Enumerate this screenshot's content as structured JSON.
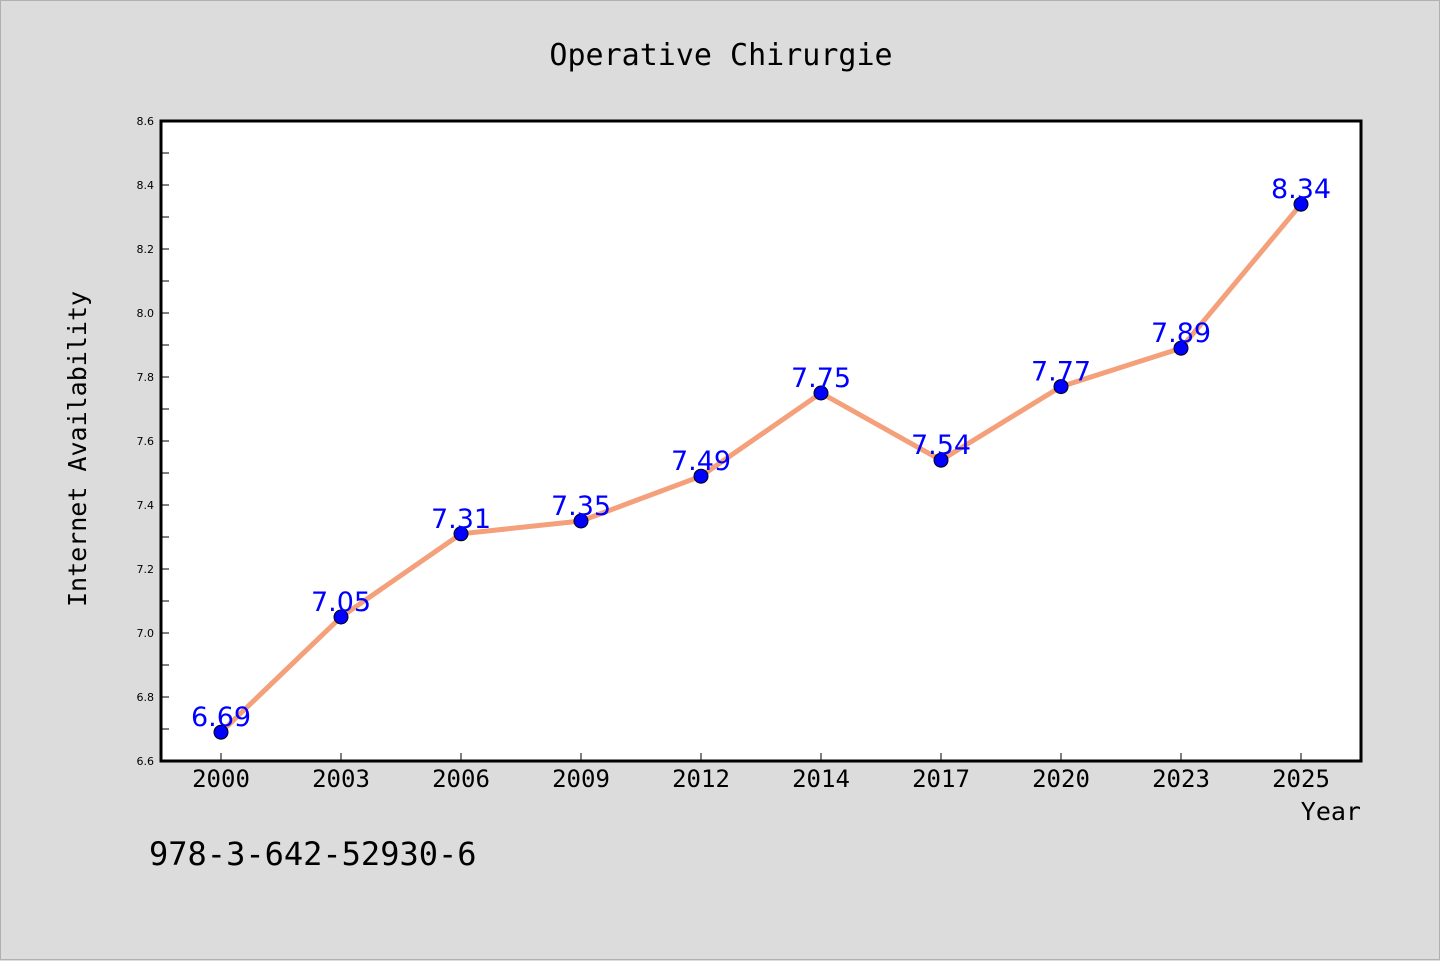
{
  "chart_data": {
    "type": "line",
    "title": "Operative Chirurgie",
    "xlabel": "Year",
    "ylabel": "Internet Availability",
    "categories": [
      "2000",
      "2003",
      "2006",
      "2009",
      "2012",
      "2014",
      "2017",
      "2020",
      "2023",
      "2025"
    ],
    "series": [
      {
        "values": [
          6.69,
          7.05,
          7.31,
          7.35,
          7.49,
          7.75,
          7.54,
          7.77,
          7.89,
          8.34
        ],
        "line_color": "#f4a07a",
        "marker_color": "#0000ff"
      }
    ],
    "data_labels": [
      "6.69",
      "7.05",
      "7.31",
      "7.35",
      "7.49",
      "7.75",
      "7.54",
      "7.77",
      "7.89",
      "8.34"
    ],
    "ylim": [
      6.6,
      8.6
    ],
    "yticks": [
      "6.6",
      "6.8",
      "7.0",
      "7.2",
      "7.4",
      "7.6",
      "7.8",
      "8.0",
      "8.2",
      "8.4",
      "8.6"
    ],
    "grid": false,
    "legend": "none",
    "colors": {
      "background": "#dcdcdc",
      "plot_background": "#ffffff",
      "data_label": "#0000ff"
    }
  },
  "footer": {
    "isbn": "978-3-642-52930-6"
  }
}
